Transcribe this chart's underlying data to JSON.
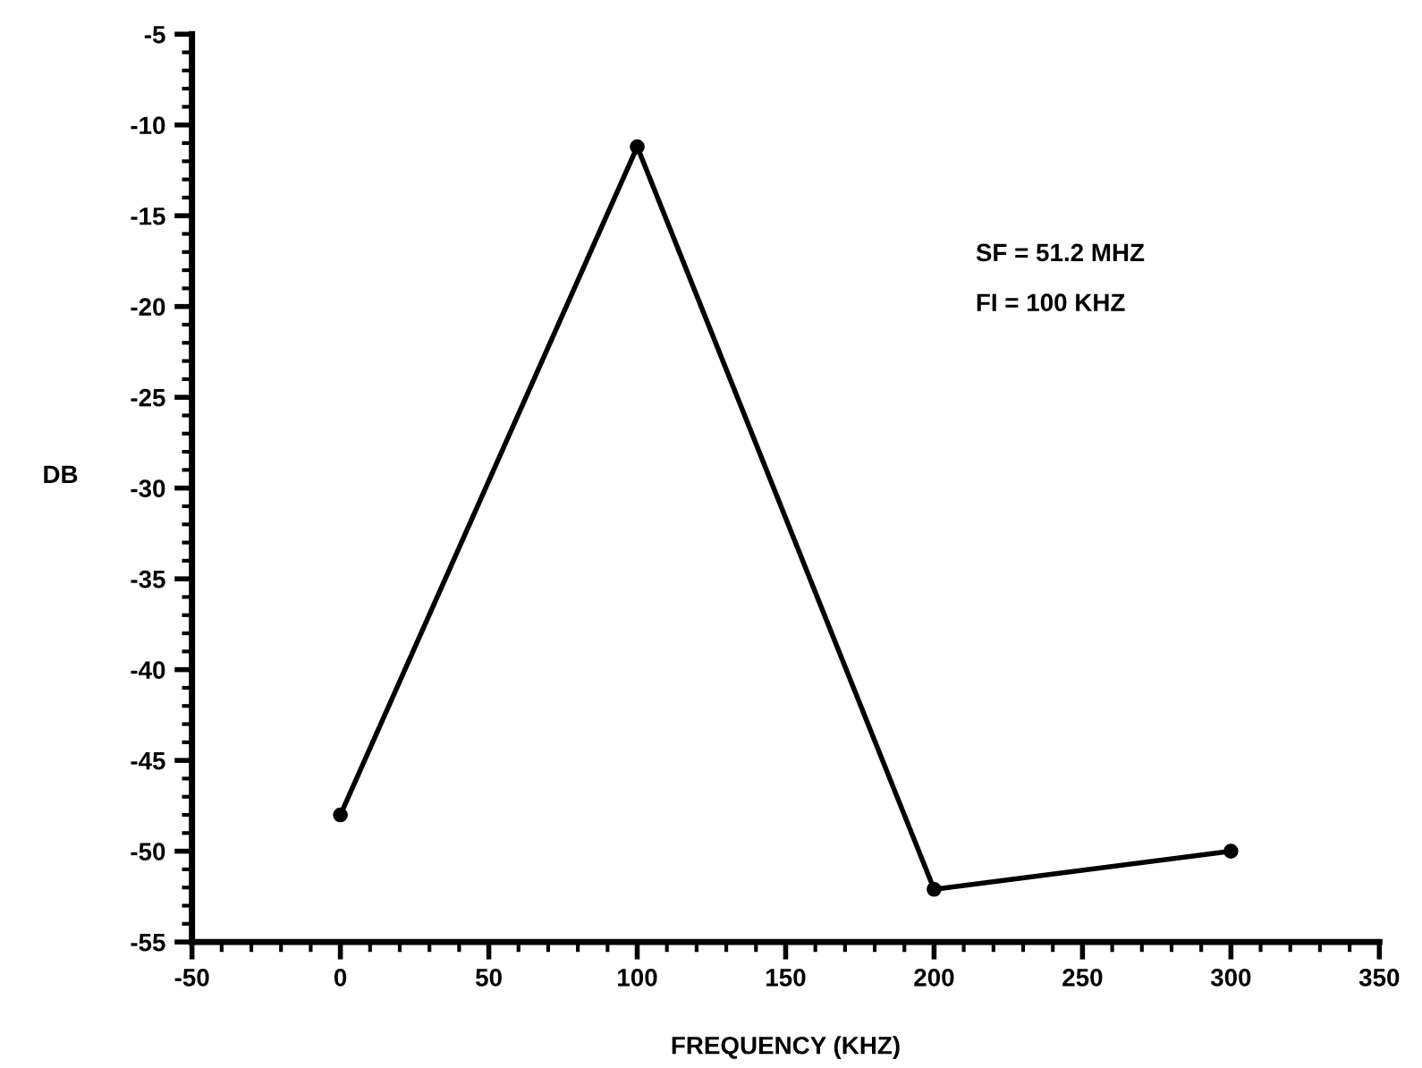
{
  "chart_data": {
    "type": "line",
    "xlabel": "FREQUENCY (KHZ)",
    "ylabel": "DB",
    "x": [
      0,
      100,
      200,
      300
    ],
    "series": [
      {
        "color": "#000000",
        "values": [
          -48,
          -11.2,
          -52.1,
          -50
        ]
      }
    ],
    "xlim": [
      -50,
      350
    ],
    "xticks": [
      -50,
      0,
      50,
      100,
      150,
      200,
      250,
      300,
      350
    ],
    "ylim": [
      -55,
      -5
    ],
    "yticks": [
      -55,
      -50,
      -45,
      -40,
      -35,
      -30,
      -25,
      -20,
      -15,
      -10,
      -5
    ],
    "marker": "circle",
    "line_style": "solid",
    "grid": false,
    "legend": false,
    "annotations": [
      "SF = 51.2 MHZ",
      "FI = 100 KHZ"
    ]
  }
}
